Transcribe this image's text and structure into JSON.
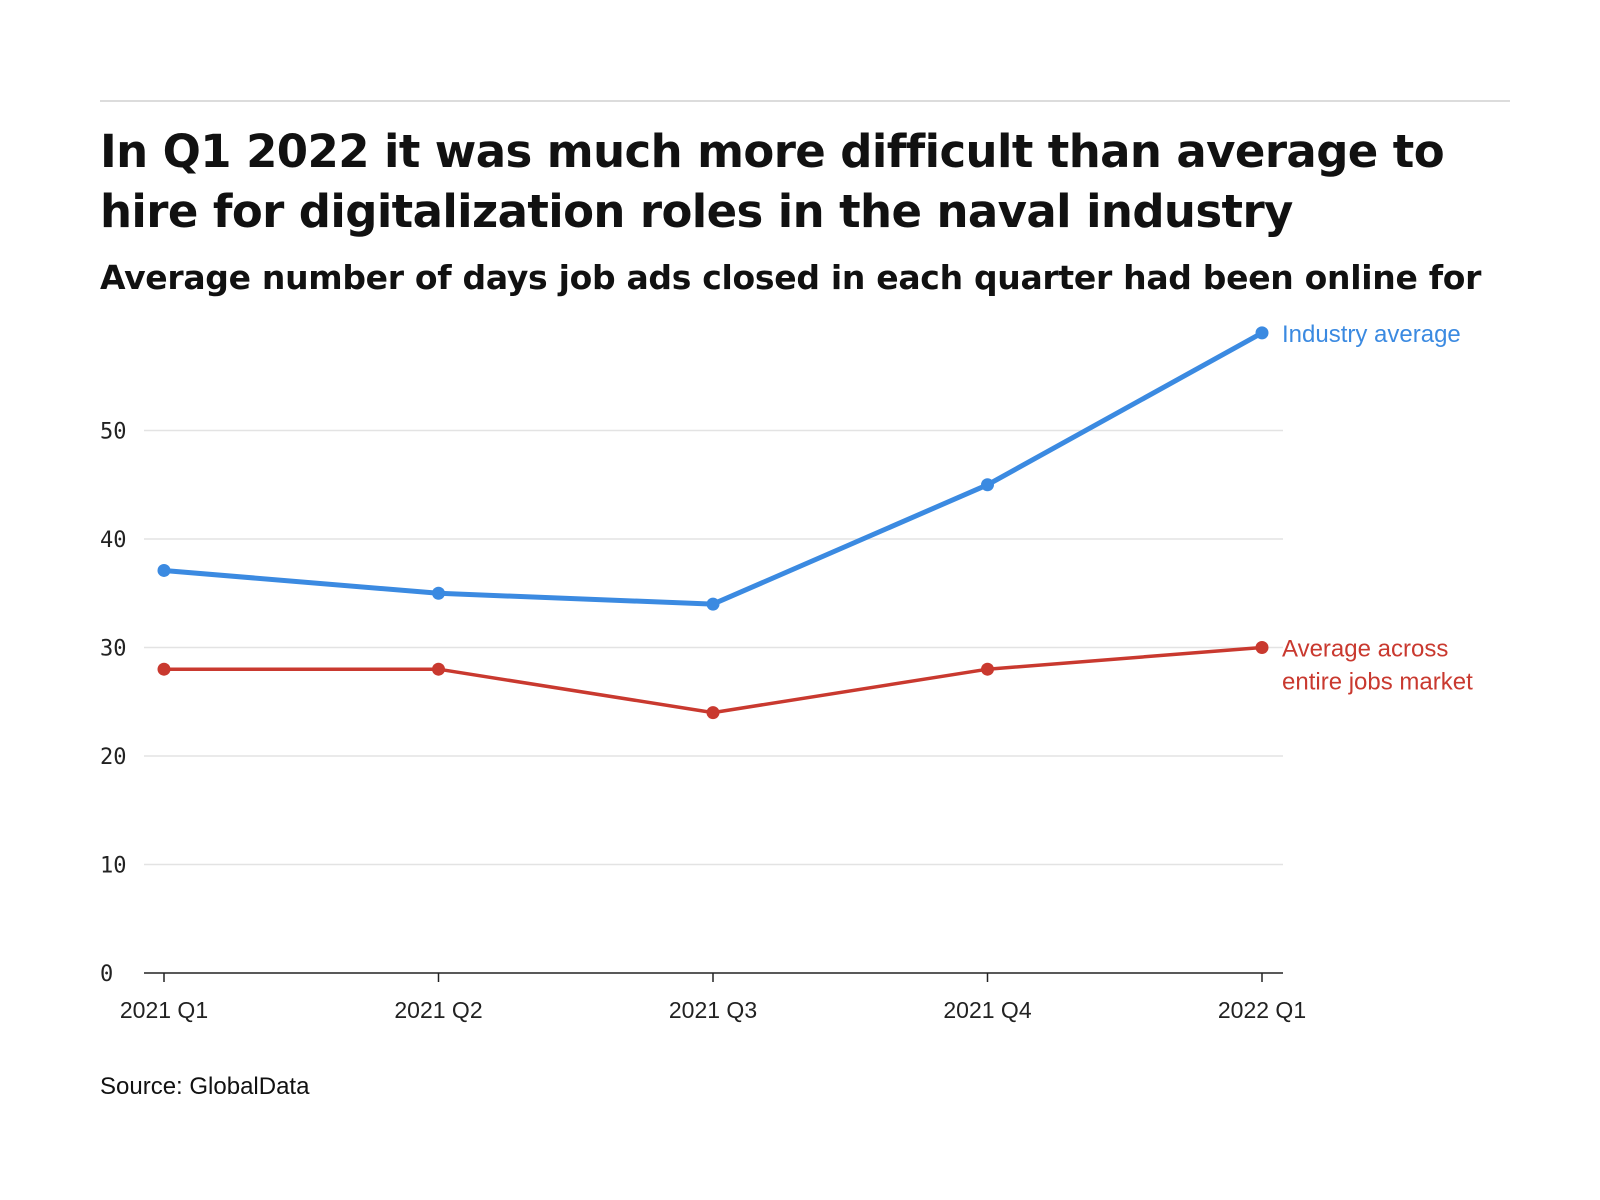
{
  "header": {
    "title": "In Q1 2022 it was much more difficult than average to hire for digitalization roles in the naval industry",
    "subtitle": "Average number of days job ads closed in each quarter had been online for"
  },
  "footer": {
    "source": "Source: GlobalData"
  },
  "chart_data": {
    "type": "line",
    "categories": [
      "2021 Q1",
      "2021 Q2",
      "2021 Q3",
      "2021 Q4",
      "2022 Q1"
    ],
    "series": [
      {
        "name": "Industry average",
        "label_lines": [
          "Industry average"
        ],
        "color": "#3b8ae1",
        "values": [
          37.1,
          35,
          34,
          45,
          59
        ]
      },
      {
        "name": "Average across entire jobs market",
        "label_lines": [
          "Average across",
          "entire jobs market"
        ],
        "color": "#c9392f",
        "values": [
          28,
          28,
          24,
          28,
          30
        ]
      }
    ],
    "ylim": [
      0,
      60
    ],
    "yticks": [
      0,
      10,
      20,
      30,
      40,
      50
    ],
    "grid": true,
    "legend": "direct labels at line ends"
  }
}
